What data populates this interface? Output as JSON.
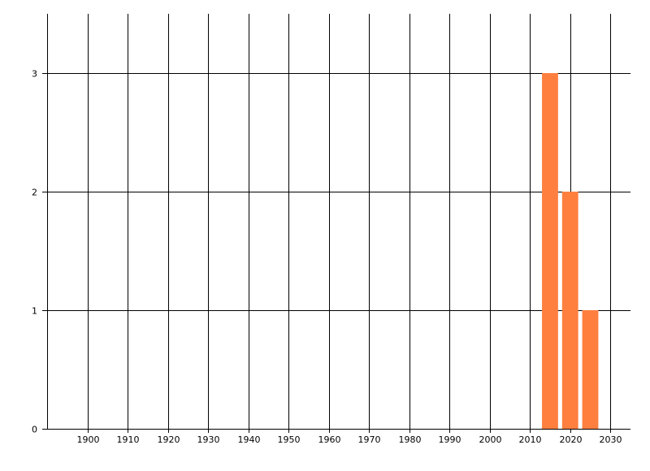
{
  "chart_data": {
    "type": "bar",
    "title": "",
    "xlabel": "",
    "ylabel": "",
    "x": [
      2015,
      2020,
      2025
    ],
    "values": [
      3,
      2,
      1
    ],
    "bar_width_years": 4,
    "xlim": [
      1890,
      2035
    ],
    "ylim": [
      0,
      3.5
    ],
    "xticks": [
      1900,
      1910,
      1920,
      1930,
      1940,
      1950,
      1960,
      1970,
      1980,
      1990,
      2000,
      2010,
      2020,
      2030
    ],
    "yticks": [
      0,
      1,
      2,
      3
    ],
    "grid": true,
    "bar_color": "#ff7f3f",
    "legend": "none"
  }
}
